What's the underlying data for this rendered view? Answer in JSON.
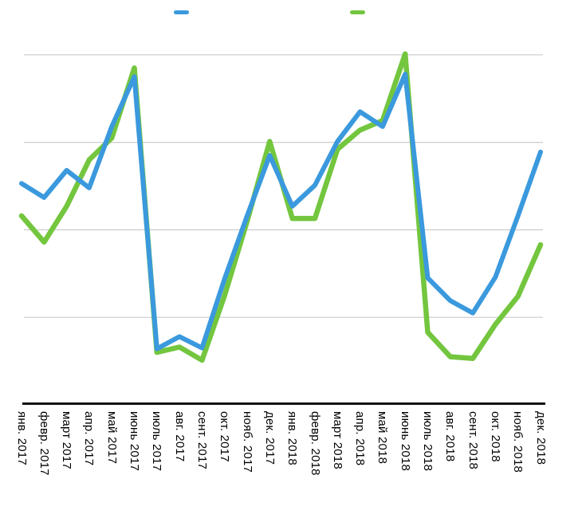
{
  "legend": {
    "items": [
      {
        "label": "",
        "color": "#3b99dd"
      },
      {
        "label": "",
        "color": "#73c63e"
      }
    ]
  },
  "chart_data": {
    "type": "line",
    "title": "",
    "xlabel": "",
    "ylabel": "",
    "categories": [
      "янв. 2017",
      "февр. 2017",
      "март 2017",
      "апр. 2017",
      "май 2017",
      "июнь 2017",
      "июль 2017",
      "авг. 2017",
      "сент. 2017",
      "окт. 2017",
      "нояб. 2017",
      "дек. 2017",
      "янв. 2018",
      "февр. 2018",
      "март 2018",
      "апр. 2018",
      "май 2018",
      "июнь 2018",
      "июль 2018",
      "авг. 2018",
      "сент. 2018",
      "окт. 2018",
      "нояб. 2018",
      "дек. 2018"
    ],
    "series": [
      {
        "name": "",
        "color": "#3b99dd",
        "values": [
          2.53,
          2.37,
          2.68,
          2.48,
          3.18,
          3.75,
          0.64,
          0.78,
          0.65,
          1.44,
          2.16,
          2.85,
          2.27,
          2.51,
          3.01,
          3.35,
          3.18,
          3.78,
          1.45,
          1.19,
          1.05,
          1.46,
          2.16,
          2.89
        ]
      },
      {
        "name": "",
        "color": "#73c63e",
        "values": [
          2.16,
          1.86,
          2.27,
          2.8,
          3.05,
          3.85,
          0.6,
          0.66,
          0.51,
          1.25,
          2.1,
          3.01,
          2.13,
          2.13,
          2.92,
          3.14,
          3.25,
          4.01,
          0.83,
          0.55,
          0.53,
          0.92,
          1.24,
          1.83
        ]
      }
    ],
    "y_axis": {
      "tick_labels_visible": false,
      "gridlines": true,
      "grid_values": [
        1,
        2,
        3,
        4
      ]
    },
    "ylim": [
      0,
      4.2
    ],
    "x_tick_rotation_deg": 90,
    "legend_position": "top",
    "background": "#ffffff",
    "axis_color": "#111111",
    "gridline_color": "#cccccc"
  }
}
